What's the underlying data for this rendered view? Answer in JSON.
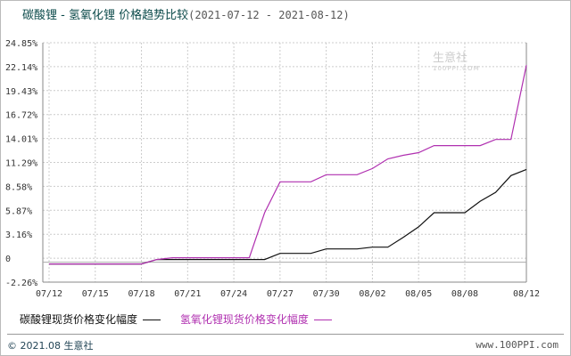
{
  "title": "碳酸锂 - 氢氧化锂 价格趋势比较",
  "date_range": "(2021-07-12 - 2021-08-12)",
  "watermark": {
    "name": "生意社",
    "site": "100PPI.COM"
  },
  "footer": {
    "left": "© 2021.08 生意社",
    "right": "www.100PPI.com"
  },
  "chart_data": {
    "type": "line",
    "title": "碳酸锂 - 氢氧化锂 价格趋势比较",
    "xlabel": "",
    "ylabel": "",
    "x": [
      "07/12",
      "07/13",
      "07/14",
      "07/15",
      "07/16",
      "07/17",
      "07/18",
      "07/19",
      "07/20",
      "07/21",
      "07/22",
      "07/23",
      "07/24",
      "07/25",
      "07/26",
      "07/27",
      "07/28",
      "07/29",
      "07/30",
      "07/31",
      "08/01",
      "08/02",
      "08/03",
      "08/04",
      "08/05",
      "08/06",
      "08/07",
      "08/08",
      "08/09",
      "08/10",
      "08/11",
      "08/12"
    ],
    "x_tick_labels": [
      "07/12",
      "07/15",
      "07/18",
      "07/21",
      "07/24",
      "07/27",
      "07/30",
      "08/02",
      "08/05",
      "08/08",
      "08/12"
    ],
    "y_tick_labels": [
      "24.85%",
      "22.14%",
      "19.43%",
      "16.72%",
      "14.01%",
      "11.29%",
      "8.58%",
      "5.87%",
      "3.16%",
      "0",
      "-2.26%"
    ],
    "ylim": [
      -2.26,
      24.85
    ],
    "grid": true,
    "legend_placement": "bottom",
    "series": [
      {
        "name": "碳酸锂现货价格变化幅度",
        "color": "#111111",
        "values": [
          -0.2,
          -0.2,
          -0.2,
          -0.2,
          -0.2,
          -0.2,
          -0.2,
          0.3,
          0.3,
          0.3,
          0.3,
          0.3,
          0.3,
          0.3,
          0.3,
          1.0,
          1.0,
          1.0,
          1.5,
          1.5,
          1.5,
          1.7,
          1.7,
          2.8,
          4.0,
          5.6,
          5.6,
          5.6,
          6.9,
          7.9,
          9.8,
          10.5
        ]
      },
      {
        "name": "氢氧化锂现货价格变化幅度",
        "color": "#b030b0",
        "values": [
          -0.2,
          -0.2,
          -0.2,
          -0.2,
          -0.2,
          -0.2,
          -0.2,
          0.3,
          0.5,
          0.5,
          0.5,
          0.5,
          0.5,
          0.5,
          5.6,
          9.1,
          9.1,
          9.1,
          9.9,
          9.9,
          9.9,
          10.6,
          11.7,
          12.1,
          12.4,
          13.2,
          13.2,
          13.2,
          13.2,
          13.9,
          13.9,
          22.3
        ]
      }
    ]
  }
}
